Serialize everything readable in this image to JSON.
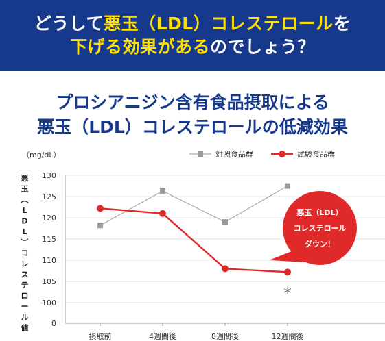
{
  "header": {
    "line1_pre": "どうして",
    "line1_hl": "悪玉（LDL）コレステロール",
    "line1_post": "を",
    "line2_hl": "下げる効果がある",
    "line2_post": "のでしょう？"
  },
  "subtitle": {
    "line1": "プロシアニジン含有食品摂取による",
    "line2": "悪玉（LDL）コレステロールの低減効果"
  },
  "callout": {
    "line1": "悪玉（LDL）",
    "line2": "コレステロール",
    "line3": "ダウン！"
  },
  "significance_mark": "＊",
  "chart_data": {
    "type": "line",
    "categories": [
      "摂取前",
      "4週間後",
      "8週間後",
      "12週間後"
    ],
    "series": [
      {
        "name": "対照食品群",
        "values": [
          118.2,
          126.3,
          119.0,
          127.5
        ],
        "color": "#9a9a9a",
        "marker": "square"
      },
      {
        "name": "試験食品群",
        "values": [
          122.2,
          121.0,
          108.0,
          107.2
        ],
        "color": "#e02a2a",
        "marker": "circle"
      }
    ],
    "unit": "（mg/dL）",
    "ylabel": "悪玉（LDL）コレステロール値",
    "yticks": [
      0,
      100,
      105,
      110,
      115,
      120,
      125,
      130
    ],
    "ylim_broken": [
      100,
      130
    ],
    "grid": "horizontal",
    "legend_position": "top-right",
    "colors": {
      "axis": "#999999",
      "grid": "#e3e3e3",
      "control": "#9a9a9a",
      "test": "#e02a2a",
      "callout": "#e02a2a"
    }
  }
}
